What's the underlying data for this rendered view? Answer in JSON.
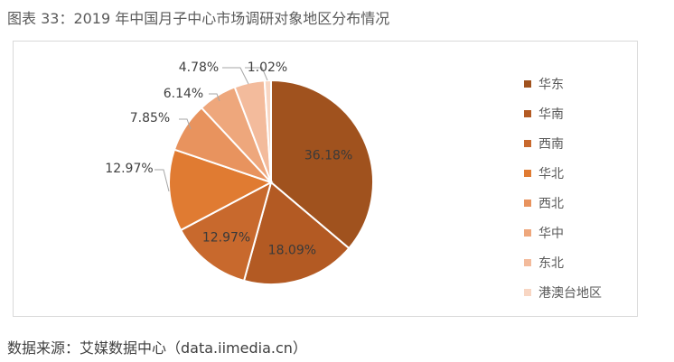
{
  "figure": {
    "title": "图表 33：2019 年中国月子中心市场调研对象地区分布情况",
    "source_label": "数据来源：",
    "source_text": "艾媒数据中心（data.iimedia.cn）"
  },
  "chart_data": {
    "type": "pie",
    "title": "",
    "labels": [
      "华东",
      "华南",
      "西南",
      "华北",
      "西北",
      "华中",
      "东北",
      "港澳台地区"
    ],
    "values": [
      36.18,
      18.09,
      12.97,
      12.97,
      7.85,
      6.14,
      4.78,
      1.02
    ],
    "value_labels": [
      "36.18%",
      "18.09%",
      "12.97%",
      "12.97%",
      "7.85%",
      "6.14%",
      "4.78%",
      "1.02%"
    ],
    "colors": [
      "#a0521e",
      "#b35a23",
      "#c8692d",
      "#e07b32",
      "#e8935e",
      "#eea77c",
      "#f3bb9c",
      "#f8d6c3"
    ],
    "legend_position": "right",
    "start_angle": "12 o'clock, clockwise"
  }
}
